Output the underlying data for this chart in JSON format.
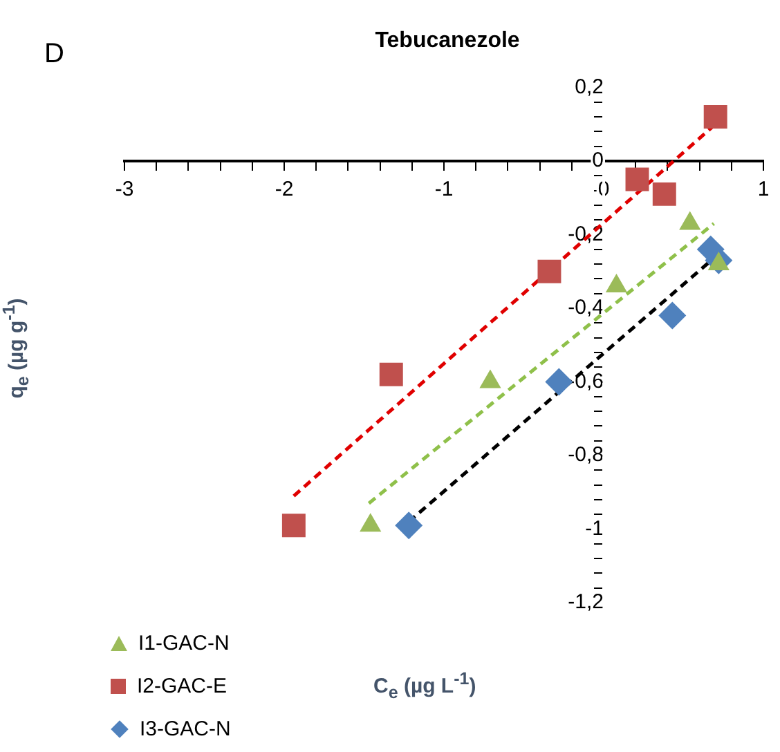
{
  "chart_data": {
    "type": "scatter",
    "title": "Tebucanezole",
    "xlabel": "C$_{e}$ (µg L$^{-1}$)",
    "ylabel": "q$_{e}$ (µg g$^{-1}$)",
    "annotations": [
      "D"
    ],
    "xlim": [
      -3,
      1
    ],
    "ylim": [
      -1.2,
      0.2
    ],
    "xticks": [
      -3,
      {
        "value": -2.8,
        "label": null
      },
      {
        "value": -2.6,
        "label": null
      },
      {
        "value": -2.4,
        "label": null
      },
      {
        "value": -2.2,
        "label": null
      },
      -2,
      {
        "value": -1.8,
        "label": null
      },
      {
        "value": -1.6,
        "label": null
      },
      {
        "value": -1.4,
        "label": null
      },
      {
        "value": -1.2,
        "label": null
      },
      -1,
      {
        "value": -0.8,
        "label": null
      },
      {
        "value": -0.6,
        "label": null
      },
      {
        "value": -0.4,
        "label": null
      },
      {
        "value": -0.2,
        "label": null
      },
      0,
      {
        "value": 0.2,
        "label": null
      },
      {
        "value": 0.4,
        "label": null
      },
      {
        "value": 0.6,
        "label": null
      },
      {
        "value": 0.8,
        "label": null
      },
      1
    ],
    "yticks": [
      {
        "value": 0.2,
        "label": "0,2"
      },
      {
        "value": 0.16,
        "label": null
      },
      {
        "value": 0.12,
        "label": null
      },
      {
        "value": 0.08,
        "label": null
      },
      {
        "value": 0.04,
        "label": null
      },
      0,
      {
        "value": -0.04,
        "label": null
      },
      {
        "value": -0.08,
        "label": null
      },
      {
        "value": -0.12,
        "label": null
      },
      {
        "value": -0.16,
        "label": null
      },
      {
        "value": -0.2,
        "label": "-0,2"
      },
      {
        "value": -0.24,
        "label": null
      },
      {
        "value": -0.28,
        "label": null
      },
      {
        "value": -0.32,
        "label": null
      },
      {
        "value": -0.36,
        "label": null
      },
      {
        "value": -0.4,
        "label": "-0,4"
      },
      {
        "value": -0.44,
        "label": null
      },
      {
        "value": -0.48,
        "label": null
      },
      {
        "value": -0.52,
        "label": null
      },
      {
        "value": -0.56,
        "label": null
      },
      {
        "value": -0.6,
        "label": "-0,6"
      },
      {
        "value": -0.64,
        "label": null
      },
      {
        "value": -0.68,
        "label": null
      },
      {
        "value": -0.72,
        "label": null
      },
      {
        "value": -0.76,
        "label": null
      },
      {
        "value": -0.8,
        "label": "-0,8"
      },
      {
        "value": -0.84,
        "label": null
      },
      {
        "value": -0.88,
        "label": null
      },
      {
        "value": -0.92,
        "label": null
      },
      {
        "value": -0.96,
        "label": null
      },
      -1,
      {
        "value": -1.04,
        "label": null
      },
      {
        "value": -1.08,
        "label": null
      },
      {
        "value": -1.12,
        "label": null
      },
      {
        "value": -1.16,
        "label": null
      },
      {
        "value": -1.2,
        "label": "-1,2"
      }
    ],
    "grid": false,
    "legend": "bottom left",
    "series": [
      {
        "name": "I1-GAC-N",
        "marker": "triangle",
        "color": "#9bbb59",
        "x": [
          -1.46,
          -0.71,
          0.08,
          0.54,
          0.72
        ],
        "values": [
          -0.99,
          -0.6,
          -0.34,
          -0.17,
          -0.28
        ]
      },
      {
        "name": "I2-GAC-E",
        "marker": "square",
        "color": "#c0504d",
        "x": [
          -1.94,
          -1.33,
          -0.34,
          0.21,
          0.38,
          0.7
        ],
        "values": [
          -0.99,
          -0.58,
          -0.3,
          -0.05,
          -0.09,
          0.12
        ]
      },
      {
        "name": "I3-GAC-N",
        "marker": "diamond",
        "color": "#4f81bd",
        "x": [
          -1.22,
          -0.28,
          0.43,
          0.67,
          0.72
        ],
        "values": [
          -0.99,
          -0.6,
          -0.42,
          -0.24,
          -0.27
        ]
      },
      {
        "type": "line",
        "line_style": "dashed",
        "marker": "none",
        "color": "#8fc04a",
        "x": [
          -1.47,
          0.69
        ],
        "values": [
          -0.93,
          -0.17
        ]
      },
      {
        "type": "line",
        "line_style": "dashed",
        "marker": "none",
        "color": "#e00000",
        "x": [
          -1.94,
          0.7
        ],
        "values": [
          -0.91,
          0.1
        ]
      },
      {
        "type": "line",
        "line_style": "dashed",
        "marker": "none",
        "color": "#000000",
        "x": [
          -1.22,
          0.7
        ],
        "values": [
          -0.98,
          -0.26
        ]
      }
    ]
  }
}
